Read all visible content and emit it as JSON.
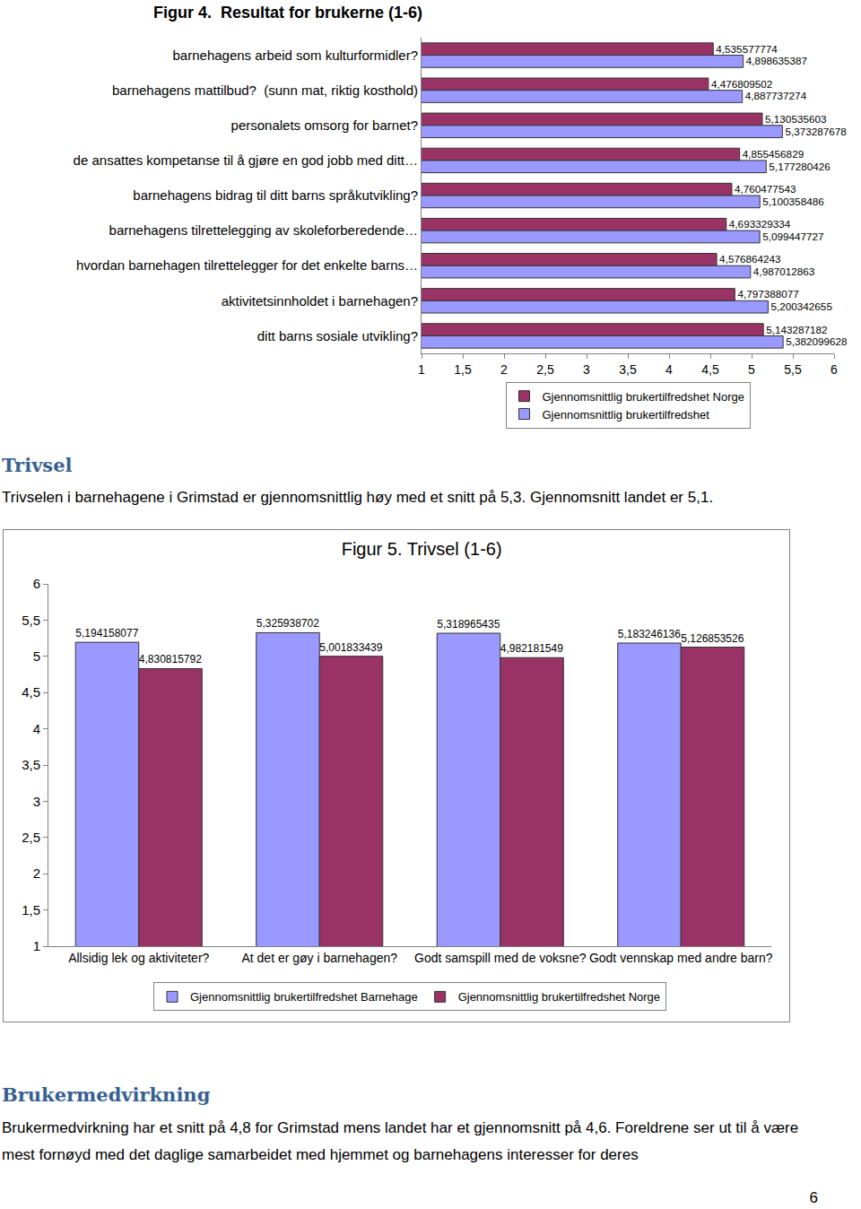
{
  "chart_data": [
    {
      "type": "bar",
      "orientation": "horizontal",
      "title": "Figur 4.  Resultat for brukerne (1-6)",
      "categories": [
        "barnehagens arbeid som kulturformidler?",
        "barnehagens mattilbud?  (sunn mat, riktig kosthold)",
        "personalets omsorg for barnet?",
        "de ansattes kompetanse til å gjøre en god jobb med ditt…",
        "barnehagens bidrag til ditt barns språkutvikling?",
        "barnehagens tilrettelegging av skoleforberedende…",
        "hvordan barnehagen tilrettelegger for det enkelte barns…",
        "aktivitetsinnholdet i barnehagen?",
        "ditt barns sosiale utvikling?"
      ],
      "series": [
        {
          "name": "Gjennomsnittlig brukertilfredshet Norge",
          "color": "#993366",
          "values": [
            4.535577774,
            4.476809502,
            5.130535603,
            4.855456829,
            4.760477543,
            4.693329334,
            4.576864243,
            4.797388077,
            5.143287182
          ],
          "value_labels": [
            "4,535577774",
            "4,476809502",
            "5,130535603",
            "4,855456829",
            "4,760477543",
            "4,693329334",
            "4,576864243",
            "4,797388077",
            "5,143287182"
          ]
        },
        {
          "name": "Gjennomsnittlig brukertilfredshet",
          "color": "#9999ff",
          "values": [
            4.898635387,
            4.887737274,
            5.373287678,
            5.177280426,
            5.100358486,
            5.099447727,
            4.987012863,
            5.200342655,
            5.382099628
          ],
          "value_labels": [
            "4,898635387",
            "4,887737274",
            "5,373287678",
            "5,177280426",
            "5,100358486",
            "5,099447727",
            "4,987012863",
            "5,200342655",
            "5,382099628"
          ]
        }
      ],
      "xlim": [
        1,
        6
      ],
      "xticks": [
        1,
        {
          "value": 1.5,
          "label": "1,5"
        },
        2,
        {
          "value": 2.5,
          "label": "2,5"
        },
        3,
        {
          "value": 3.5,
          "label": "3,5"
        },
        4,
        {
          "value": 4.5,
          "label": "4,5"
        },
        5,
        {
          "value": 5.5,
          "label": "5,5"
        },
        6
      ],
      "grid": false,
      "data_labels": true,
      "legend": "bottom"
    },
    {
      "type": "bar",
      "title": "Figur 5. Trivsel (1-6)",
      "categories": [
        "Allsidig lek og aktiviteter?",
        "At det er gøy i barnehagen?",
        "Godt samspill med de voksne?",
        "Godt vennskap med andre barn?"
      ],
      "series": [
        {
          "name": "Gjennomsnittlig brukertilfredshet Barnehage",
          "color": "#9999ff",
          "values": [
            5.194158077,
            5.325938702,
            5.318965435,
            5.183246136
          ],
          "value_labels": [
            "5,194158077",
            "5,325938702",
            "5,318965435",
            "5,183246136"
          ]
        },
        {
          "name": "Gjennomsnittlig brukertilfredshet Norge",
          "color": "#993366",
          "values": [
            4.830815792,
            5.001833439,
            4.982181549,
            5.126853526
          ],
          "value_labels": [
            "4,830815792",
            "5,001833439",
            "4,982181549",
            "5,126853526"
          ]
        }
      ],
      "ylim": [
        1,
        6
      ],
      "yticks": [
        1,
        {
          "value": 1.5,
          "label": "1,5"
        },
        2,
        {
          "value": 2.5,
          "label": "2,5"
        },
        3,
        {
          "value": 3.5,
          "label": "3,5"
        },
        4,
        {
          "value": 4.5,
          "label": "4,5"
        },
        5,
        {
          "value": 5.5,
          "label": "5,5"
        },
        6
      ],
      "grid": false,
      "data_labels": true,
      "legend": "bottom"
    }
  ],
  "sections": [
    {
      "heading": "Trivsel",
      "text": "Trivselen i barnehagene i Grimstad er gjennomsnittlig høy med et snitt på 5,3. Gjennomsnitt landet er 5,1."
    },
    {
      "heading": "Brukermedvirkning",
      "text": "Brukermedvirkning har et snitt på 4,8 for Grimstad mens landet har et gjennomsnitt på 4,6. Foreldrene ser ut til å være mest fornøyd med det daglige samarbeidet med hjemmet og barnehagens interesser for deres"
    }
  ],
  "page_number": 6
}
